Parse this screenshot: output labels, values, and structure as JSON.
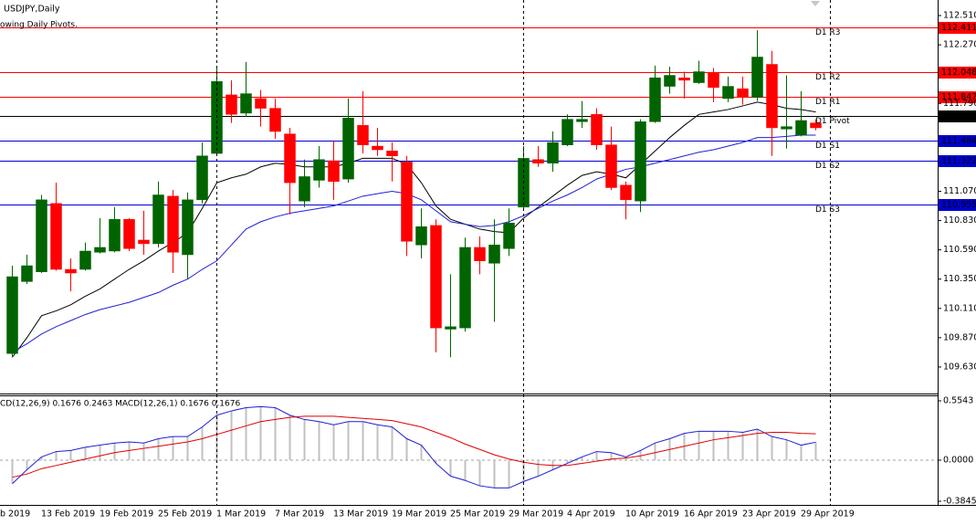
{
  "chart_data": [
    {
      "type": "candlestick",
      "title": "USDJPY,Daily",
      "subtitle": "owing Daily Pivots.",
      "categories": [
        "b 2019",
        null,
        null,
        null,
        "13 Feb 2019",
        null,
        null,
        null,
        "19 Feb 2019",
        null,
        null,
        null,
        "25 Feb 2019",
        null,
        null,
        null,
        "1 Mar 2019",
        null,
        null,
        null,
        "7 Mar 2019",
        null,
        null,
        null,
        "13 Mar 2019",
        null,
        null,
        null,
        "19 Mar 2019",
        null,
        null,
        null,
        "25 Mar 2019",
        null,
        null,
        null,
        "29 Mar 2019",
        null,
        null,
        null,
        "4 Apr 2019",
        null,
        null,
        null,
        "10 Apr 2019",
        null,
        null,
        null,
        "16 Apr 2019",
        null,
        null,
        null,
        "23 Apr 2019",
        null,
        null,
        null,
        "29 Apr 2019",
        null
      ],
      "open": [
        null,
        null,
        109.74,
        110.33,
        110.41,
        110.97,
        110.43,
        110.43,
        110.57,
        110.58,
        110.84,
        110.67,
        110.64,
        111.03,
        110.55,
        111.0,
        111.38,
        111.86,
        111.71,
        111.83,
        111.75,
        111.54,
        110.99,
        111.16,
        111.32,
        111.17,
        111.61,
        111.44,
        111.4,
        111.31,
        110.63,
        110.79,
        109.94,
        109.95,
        110.61,
        110.48,
        110.6,
        110.94,
        111.33,
        111.3,
        111.45,
        111.64,
        111.7,
        111.45,
        111.12,
        110.99,
        111.64,
        111.93,
        112.0,
        111.96,
        112.04,
        111.83,
        111.91,
        111.84,
        112.11,
        111.58,
        111.53,
        111.63
      ],
      "high": [
        null,
        null,
        110.46,
        110.55,
        111.04,
        111.14,
        110.52,
        110.65,
        110.85,
        110.94,
        110.85,
        110.91,
        111.15,
        111.08,
        111.06,
        111.47,
        112.08,
        111.98,
        112.13,
        111.9,
        111.83,
        111.59,
        111.33,
        111.44,
        111.48,
        111.83,
        111.89,
        111.59,
        111.47,
        111.36,
        110.93,
        110.84,
        110.39,
        110.69,
        110.7,
        110.84,
        110.93,
        111.44,
        111.44,
        111.56,
        111.7,
        111.81,
        111.75,
        111.6,
        111.15,
        111.66,
        112.1,
        112.09,
        112.05,
        112.14,
        112.08,
        112.01,
        112.01,
        112.39,
        112.22,
        112.02,
        111.89,
        111.66
      ],
      "low": [
        null,
        null,
        109.71,
        110.31,
        110.4,
        110.42,
        110.25,
        110.42,
        110.56,
        110.57,
        110.58,
        110.55,
        110.61,
        110.4,
        110.35,
        110.97,
        111.36,
        111.63,
        111.68,
        111.6,
        111.5,
        110.88,
        110.94,
        111.1,
        111.0,
        111.14,
        111.38,
        111.36,
        111.15,
        110.54,
        110.52,
        109.75,
        109.71,
        109.92,
        110.39,
        110.0,
        110.54,
        110.91,
        111.27,
        111.23,
        111.44,
        111.59,
        111.41,
        111.08,
        110.84,
        110.9,
        111.63,
        111.87,
        111.83,
        111.95,
        111.8,
        111.8,
        111.78,
        111.81,
        111.36,
        111.42,
        111.52,
        111.57
      ],
      "close": [
        null,
        null,
        110.37,
        110.46,
        111.0,
        110.43,
        110.4,
        110.58,
        110.61,
        110.84,
        110.6,
        110.64,
        111.04,
        110.57,
        111.0,
        111.36,
        111.97,
        111.7,
        111.87,
        111.75,
        111.56,
        111.14,
        111.19,
        111.33,
        111.15,
        111.67,
        111.45,
        111.41,
        111.36,
        110.66,
        110.78,
        109.95,
        109.96,
        110.61,
        110.5,
        110.63,
        110.81,
        111.34,
        111.3,
        111.47,
        111.66,
        111.66,
        111.45,
        111.1,
        111.0,
        111.64,
        112.0,
        112.02,
        111.98,
        112.05,
        111.92,
        111.93,
        111.84,
        112.17,
        111.59,
        111.6,
        111.65,
        111.59
      ],
      "up_color": "#006400",
      "down_color": "#ff0000",
      "series": [
        {
          "color": "#000000",
          "values": [
            null,
            null,
            109.71,
            109.87,
            110.05,
            110.09,
            110.14,
            110.21,
            110.27,
            110.35,
            110.43,
            110.5,
            110.58,
            110.65,
            110.73,
            110.93,
            111.14,
            111.18,
            111.21,
            111.27,
            111.3,
            111.29,
            111.27,
            111.27,
            111.27,
            111.3,
            111.34,
            111.34,
            111.34,
            111.29,
            111.14,
            110.95,
            110.84,
            110.8,
            110.76,
            110.74,
            110.73,
            110.85,
            110.94,
            111.03,
            111.12,
            111.2,
            111.23,
            111.21,
            111.18,
            111.29,
            111.4,
            111.51,
            111.61,
            111.7,
            111.72,
            111.74,
            111.77,
            111.8,
            111.78,
            111.75,
            111.74,
            111.72
          ]
        },
        {
          "color": "#1f1fd6",
          "values": [
            null,
            null,
            109.75,
            109.82,
            109.9,
            109.96,
            110.01,
            110.06,
            110.1,
            110.13,
            110.16,
            110.2,
            110.24,
            110.3,
            110.35,
            110.43,
            110.5,
            110.63,
            110.76,
            110.82,
            110.86,
            110.89,
            110.91,
            110.93,
            110.95,
            110.99,
            111.03,
            111.05,
            111.07,
            111.05,
            111.0,
            110.91,
            110.82,
            110.8,
            110.78,
            110.79,
            110.82,
            110.87,
            110.93,
            110.99,
            111.04,
            111.1,
            111.17,
            111.21,
            111.25,
            111.27,
            111.3,
            111.33,
            111.36,
            111.39,
            111.41,
            111.44,
            111.47,
            111.51,
            111.51,
            111.52,
            111.53,
            111.53
          ]
        }
      ],
      "pivots": [
        {
          "label": "D1 R3",
          "value": 112.411,
          "color": "#ff0000"
        },
        {
          "label": "D1 R2",
          "value": 112.048,
          "color": "#ff0000"
        },
        {
          "label": "D1 R1",
          "value": 111.847,
          "color": "#ff0000"
        },
        {
          "label": "D1 Pivot",
          "value": 111.685,
          "color": "#000000"
        },
        {
          "label": "D1 S1",
          "value": 111.484,
          "color": "#0000cd"
        },
        {
          "label": "D1 S2",
          "value": 111.322,
          "color": "#0000cd"
        },
        {
          "label": "D1 S3",
          "value": 110.959,
          "color": "#0000cd"
        }
      ],
      "ylim": [
        109.4125,
        112.6375
      ],
      "yticks": [
        {
          "value": 112.51,
          "label": "112.510"
        },
        {
          "value": 112.27,
          "label": "112.270"
        },
        {
          "value": 111.79,
          "label": "111.790"
        },
        {
          "value": 111.07,
          "label": "111.070"
        },
        {
          "value": 110.83,
          "label": "110.830"
        },
        {
          "value": 110.59,
          "label": "110.590"
        },
        {
          "value": 110.35,
          "label": "110.350"
        },
        {
          "value": 110.11,
          "label": "110.110"
        },
        {
          "value": 109.87,
          "label": "109.870"
        },
        {
          "value": 109.63,
          "label": "109.630"
        }
      ]
    },
    {
      "type": "macd",
      "title": "CD(12,26,9) 0.1676 0.2463 MACD(12,26,1) 0.1676 0.1676",
      "histogram": {
        "color": "#c0c0c0",
        "values": [
          null,
          null,
          -0.22,
          -0.09,
          0.03,
          0.08,
          0.09,
          0.12,
          0.14,
          0.16,
          0.17,
          0.16,
          0.2,
          0.22,
          0.22,
          0.31,
          0.42,
          0.46,
          0.49,
          0.5,
          0.49,
          0.42,
          0.38,
          0.36,
          0.33,
          0.36,
          0.36,
          0.33,
          0.31,
          0.2,
          0.14,
          -0.03,
          -0.15,
          -0.19,
          -0.24,
          -0.26,
          -0.26,
          -0.2,
          -0.15,
          -0.09,
          -0.03,
          0.03,
          0.08,
          0.07,
          0.03,
          0.09,
          0.16,
          0.2,
          0.25,
          0.27,
          0.27,
          0.27,
          0.26,
          0.29,
          0.22,
          0.19,
          0.14,
          0.1676
        ]
      },
      "series": [
        {
          "color": "#1f1fd6",
          "values": [
            null,
            null,
            -0.22,
            -0.09,
            0.03,
            0.08,
            0.09,
            0.12,
            0.14,
            0.16,
            0.17,
            0.16,
            0.2,
            0.22,
            0.22,
            0.31,
            0.42,
            0.46,
            0.49,
            0.5,
            0.49,
            0.42,
            0.38,
            0.36,
            0.33,
            0.36,
            0.36,
            0.33,
            0.31,
            0.2,
            0.14,
            -0.03,
            -0.15,
            -0.19,
            -0.24,
            -0.26,
            -0.26,
            -0.2,
            -0.15,
            -0.09,
            -0.03,
            0.03,
            0.08,
            0.07,
            0.03,
            0.09,
            0.16,
            0.2,
            0.25,
            0.27,
            0.27,
            0.27,
            0.26,
            0.29,
            0.22,
            0.19,
            0.14,
            0.1676
          ]
        },
        {
          "color": "#e00000",
          "values": [
            null,
            null,
            -0.16,
            -0.13,
            -0.08,
            -0.05,
            -0.02,
            0.01,
            0.04,
            0.07,
            0.09,
            0.11,
            0.13,
            0.15,
            0.17,
            0.2,
            0.24,
            0.28,
            0.32,
            0.36,
            0.38,
            0.4,
            0.41,
            0.41,
            0.41,
            0.4,
            0.39,
            0.38,
            0.37,
            0.34,
            0.31,
            0.26,
            0.21,
            0.15,
            0.1,
            0.05,
            0.01,
            -0.02,
            -0.04,
            -0.05,
            -0.05,
            -0.03,
            -0.01,
            0.01,
            0.02,
            0.04,
            0.07,
            0.1,
            0.13,
            0.16,
            0.19,
            0.21,
            0.23,
            0.25,
            0.26,
            0.26,
            0.25,
            0.2463
          ]
        }
      ],
      "ylim": [
        -0.4186,
        0.6055
      ],
      "yticks": [
        0.5543,
        {
          "value": 0,
          "label": "0.0000"
        },
        -0.3845
      ]
    }
  ]
}
